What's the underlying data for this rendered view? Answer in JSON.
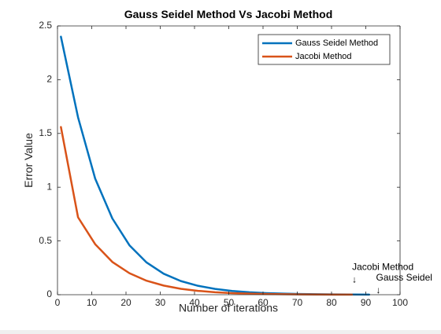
{
  "chart_data": {
    "type": "line",
    "title": "Gauss Seidel Method Vs Jacobi Method",
    "xlabel": "Number of iterations",
    "ylabel": "Error Value",
    "xlim": [
      0,
      100
    ],
    "ylim": [
      0,
      2.5
    ],
    "xticks": [
      0,
      10,
      20,
      30,
      40,
      50,
      60,
      70,
      80,
      90,
      100
    ],
    "xtick_labels": [
      "0",
      "10",
      "20",
      "30",
      "40",
      "50",
      "60",
      "70",
      "80",
      "90",
      "100"
    ],
    "yticks": [
      0,
      0.5,
      1,
      1.5,
      2,
      2.5
    ],
    "ytick_labels": [
      "0",
      "0.5",
      "1",
      "1.5",
      "2",
      "2.5"
    ],
    "grid": false,
    "legend_position": "top-right",
    "series": [
      {
        "name": "Gauss Seidel Method",
        "color": "#0072BD",
        "x": [
          1,
          6,
          11,
          16,
          21,
          26,
          31,
          36,
          41,
          46,
          51,
          56,
          61,
          66,
          71,
          76,
          81,
          86,
          91
        ],
        "y": [
          2.4,
          1.65,
          1.08,
          0.71,
          0.46,
          0.3,
          0.195,
          0.127,
          0.083,
          0.054,
          0.035,
          0.023,
          0.015,
          0.01,
          0.0065,
          0.0042,
          0.0027,
          0.0018,
          0.0012
        ]
      },
      {
        "name": "Jacobi Method",
        "color": "#D95319",
        "x": [
          1,
          6,
          11,
          16,
          21,
          26,
          31,
          36,
          41,
          46,
          51,
          56,
          61,
          66,
          71,
          76,
          81,
          86
        ],
        "y": [
          1.56,
          0.72,
          0.47,
          0.305,
          0.2,
          0.13,
          0.085,
          0.055,
          0.036,
          0.023,
          0.015,
          0.01,
          0.0065,
          0.0042,
          0.0027,
          0.0018,
          0.0012,
          0.0008
        ]
      }
    ],
    "annotations": [
      {
        "text": "Jacobi Method",
        "arrow": "↓",
        "x": 86,
        "y": 0.23
      },
      {
        "text": "Gauss Seidel",
        "arrow": "↓",
        "x": 93,
        "y": 0.13
      }
    ]
  }
}
